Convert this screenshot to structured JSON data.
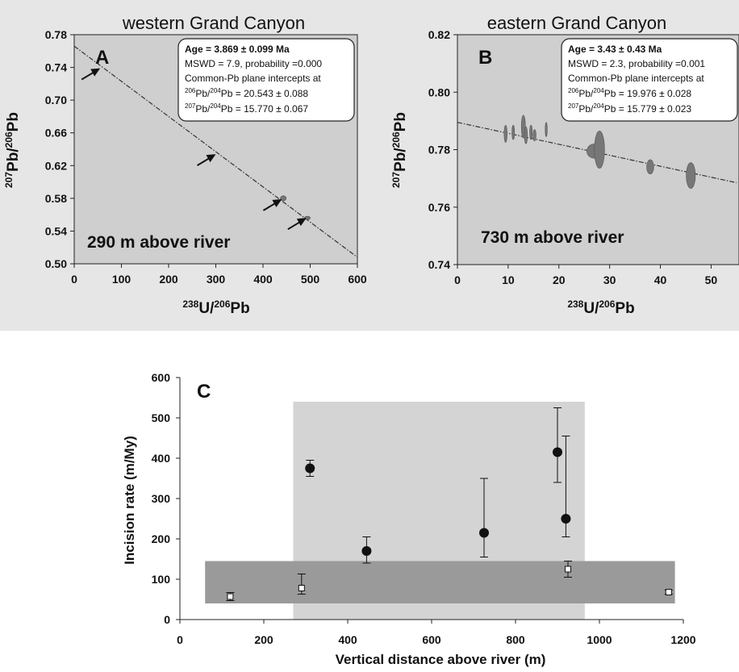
{
  "chart_data": [
    {
      "id": "A",
      "type": "scatter",
      "panel_letter": "A",
      "title": "western Grand Canyon",
      "xlabel_base": "238U/206Pb",
      "xlabel_parts": [
        "238",
        "U/",
        "206",
        "Pb"
      ],
      "ylabel_parts": [
        "207",
        "Pb/",
        "206",
        "Pb"
      ],
      "xlim": [
        0,
        600
      ],
      "ylim": [
        0.5,
        0.78
      ],
      "xticks": [
        "0",
        "100",
        "200",
        "300",
        "400",
        "500",
        "600"
      ],
      "yticks": [
        "0.50",
        "0.54",
        "0.58",
        "0.62",
        "0.66",
        "0.70",
        "0.74",
        "0.78"
      ],
      "fit_line": {
        "x": [
          0,
          600
        ],
        "y": [
          0.766,
          0.508
        ]
      },
      "points": [
        {
          "x": 443,
          "y": 0.58,
          "xerr": 6,
          "yerr": 0.003
        },
        {
          "x": 494,
          "y": 0.556,
          "xerr": 6,
          "yerr": 0.002
        }
      ],
      "arrow_targets": [
        {
          "x": 55,
          "y": 0.74
        },
        {
          "x": 300,
          "y": 0.635
        },
        {
          "x": 440,
          "y": 0.58
        },
        {
          "x": 492,
          "y": 0.557
        }
      ],
      "annotation": "290 m above river",
      "stats": {
        "age": "Age = 3.869 ± 0.099 Ma",
        "mswd": "MSWD = 7.9,  probability =0.000",
        "intercepts": "Common-Pb plane intercepts at",
        "r1_pre": "206",
        "r1_mid": "Pb/",
        "r1_sup": "204",
        "r1_post": "Pb = 20.543 ± 0.088",
        "r2_pre": "207",
        "r2_mid": "Pb/",
        "r2_sup": "204",
        "r2_post": "Pb = 15.770 ± 0.067"
      }
    },
    {
      "id": "B",
      "type": "scatter",
      "panel_letter": "B",
      "title": "eastern Grand Canyon",
      "xlabel_parts": [
        "238",
        "U/",
        "206",
        "Pb"
      ],
      "ylabel_parts": [
        "207",
        "Pb/",
        "206",
        "Pb"
      ],
      "xlim": [
        0,
        55
      ],
      "ylim": [
        0.74,
        0.82
      ],
      "xticks": [
        "0",
        "10",
        "20",
        "30",
        "40",
        "50"
      ],
      "xtick_values": [
        0,
        10,
        20,
        30,
        40,
        50
      ],
      "yticks": [
        "0.74",
        "0.76",
        "0.78",
        "0.80",
        "0.82"
      ],
      "ytick_values": [
        0.74,
        0.76,
        0.78,
        0.8,
        0.82
      ],
      "fit_line": {
        "x": [
          0,
          55
        ],
        "y": [
          0.7895,
          0.7685
        ]
      },
      "points": [
        {
          "x": 9.5,
          "y": 0.7855,
          "xerr": 0.3,
          "yerr": 0.003
        },
        {
          "x": 11,
          "y": 0.786,
          "xerr": 0.25,
          "yerr": 0.0025
        },
        {
          "x": 13,
          "y": 0.788,
          "xerr": 0.4,
          "yerr": 0.004
        },
        {
          "x": 13.5,
          "y": 0.785,
          "xerr": 0.3,
          "yerr": 0.003
        },
        {
          "x": 14.5,
          "y": 0.786,
          "xerr": 0.25,
          "yerr": 0.0025
        },
        {
          "x": 15.2,
          "y": 0.785,
          "xerr": 0.3,
          "yerr": 0.002
        },
        {
          "x": 17.5,
          "y": 0.787,
          "xerr": 0.2,
          "yerr": 0.0025
        },
        {
          "x": 27,
          "y": 0.7795,
          "xerr": 1.5,
          "yerr": 0.0025
        },
        {
          "x": 28,
          "y": 0.78,
          "xerr": 1.0,
          "yerr": 0.0065
        },
        {
          "x": 38,
          "y": 0.774,
          "xerr": 0.7,
          "yerr": 0.0025
        },
        {
          "x": 46,
          "y": 0.771,
          "xerr": 0.9,
          "yerr": 0.0045
        }
      ],
      "annotation": "730 m above river",
      "stats": {
        "age": "Age = 3.43 ± 0.43 Ma",
        "mswd": "MSWD = 2.3,  probability =0.001",
        "intercepts": "Common-Pb plane intercepts at",
        "r1_pre": "206",
        "r1_mid": "Pb/",
        "r1_sup": "204",
        "r1_post": "Pb = 19.976 ± 0.028",
        "r2_pre": "207",
        "r2_mid": "Pb/",
        "r2_sup": "204",
        "r2_post": "Pb = 15.779 ± 0.023"
      }
    },
    {
      "id": "C",
      "type": "scatter",
      "panel_letter": "C",
      "title": "",
      "xlabel": "Vertical distance above river (m)",
      "ylabel": "Incision rate (m/My)",
      "xlim": [
        0,
        1200
      ],
      "ylim": [
        0,
        600
      ],
      "xticks": [
        "0",
        "200",
        "400",
        "600",
        "800",
        "1000",
        "1200"
      ],
      "xtick_values": [
        0,
        200,
        400,
        600,
        800,
        1000,
        1200
      ],
      "yticks": [
        "0",
        "100",
        "200",
        "300",
        "400",
        "500",
        "600"
      ],
      "ytick_values": [
        0,
        100,
        200,
        300,
        400,
        500,
        600
      ],
      "shaded_regions": [
        {
          "x": [
            270,
            965
          ],
          "y": [
            0,
            540
          ],
          "color": "#d4d4d4"
        },
        {
          "x": [
            60,
            1180
          ],
          "y": [
            40,
            145
          ],
          "color": "#9a9a9a"
        }
      ],
      "series": [
        {
          "marker": "filled-circle",
          "x": [
            310,
            445,
            725,
            900,
            920
          ],
          "y": [
            375,
            170,
            215,
            415,
            250
          ],
          "yerr_low": [
            20,
            30,
            60,
            75,
            45
          ],
          "yerr_high": [
            20,
            35,
            135,
            110,
            205
          ]
        },
        {
          "marker": "open-square",
          "x": [
            120,
            290,
            925,
            1165
          ],
          "y": [
            57,
            78,
            125,
            68
          ],
          "yerr_low": [
            10,
            15,
            20,
            5
          ],
          "yerr_high": [
            10,
            35,
            20,
            5
          ]
        }
      ]
    }
  ]
}
